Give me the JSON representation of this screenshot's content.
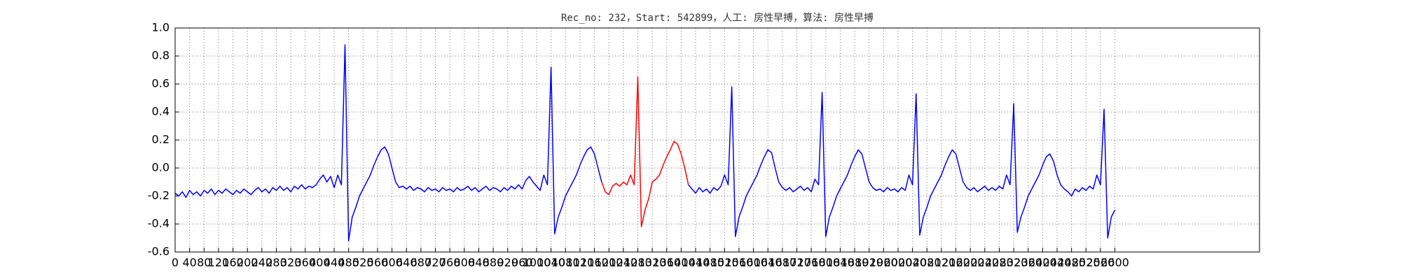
{
  "chart_data": {
    "type": "line",
    "title": "Rec_no: 232，Start: 542899，人工: 房性早搏，算法: 房性早搏",
    "xlim": [
      0,
      3000
    ],
    "ylim": [
      -0.6,
      1.0
    ],
    "grid": true,
    "xticks": [
      0,
      40,
      80,
      120,
      160,
      200,
      240,
      280,
      320,
      360,
      400,
      440,
      480,
      520,
      560,
      600,
      640,
      680,
      720,
      760,
      800,
      840,
      880,
      920,
      960,
      1000,
      1040,
      1080,
      1120,
      1160,
      1200,
      1240,
      1280,
      1320,
      1360,
      1400,
      1440,
      1480,
      1520,
      1560,
      1600,
      1640,
      1680,
      1720,
      1760,
      1800,
      1840,
      1880,
      1920,
      1960,
      2000,
      2040,
      2080,
      2120,
      2160,
      2200,
      2240,
      2280,
      2320,
      2360,
      2400,
      2440,
      2480,
      2520,
      2560,
      2600
    ],
    "yticks": [
      -0.6,
      -0.4,
      -0.2,
      {
        "value": 0.0,
        "label": "0.0"
      },
      0.2,
      0.4,
      0.6,
      0.8,
      {
        "value": 1.0,
        "label": "1.0"
      }
    ],
    "x": [
      0,
      10,
      20,
      30,
      40,
      50,
      60,
      70,
      80,
      90,
      100,
      110,
      120,
      130,
      140,
      150,
      160,
      170,
      180,
      190,
      200,
      210,
      220,
      230,
      240,
      250,
      260,
      270,
      280,
      290,
      300,
      310,
      320,
      330,
      340,
      350,
      360,
      370,
      380,
      390,
      400,
      410,
      420,
      430,
      440,
      450,
      460,
      470,
      480,
      490,
      500,
      510,
      520,
      530,
      540,
      550,
      560,
      570,
      580,
      590,
      600,
      610,
      620,
      630,
      640,
      650,
      660,
      670,
      680,
      690,
      700,
      710,
      720,
      730,
      740,
      750,
      760,
      770,
      780,
      790,
      800,
      810,
      820,
      830,
      840,
      850,
      860,
      870,
      880,
      890,
      900,
      910,
      920,
      930,
      940,
      950,
      960,
      970,
      980,
      990,
      1000,
      1010,
      1020,
      1030,
      1040,
      1050,
      1060,
      1070,
      1080,
      1090,
      1100,
      1110,
      1120,
      1130,
      1140,
      1150,
      1160,
      1170,
      1180,
      1190,
      1200,
      1210,
      1220,
      1230,
      1240,
      1250,
      1260,
      1270,
      1280,
      1290,
      1300,
      1310,
      1320,
      1330,
      1340,
      1350,
      1360,
      1370,
      1380,
      1390,
      1400,
      1410,
      1420,
      1430,
      1440,
      1450,
      1460,
      1470,
      1480,
      1490,
      1500,
      1510,
      1520,
      1530,
      1540,
      1550,
      1560,
      1570,
      1580,
      1590,
      1600,
      1610,
      1620,
      1630,
      1640,
      1650,
      1660,
      1670,
      1680,
      1690,
      1700,
      1710,
      1720,
      1730,
      1740,
      1750,
      1760,
      1770,
      1780,
      1790,
      1800,
      1810,
      1820,
      1830,
      1840,
      1850,
      1860,
      1870,
      1880,
      1890,
      1900,
      1910,
      1920,
      1930,
      1940,
      1950,
      1960,
      1970,
      1980,
      1990,
      2000,
      2010,
      2020,
      2030,
      2040,
      2050,
      2060,
      2070,
      2080,
      2090,
      2100,
      2110,
      2120,
      2130,
      2140,
      2150,
      2160,
      2170,
      2180,
      2190,
      2200,
      2210,
      2220,
      2230,
      2240,
      2250,
      2260,
      2270,
      2280,
      2290,
      2300,
      2310,
      2320,
      2330,
      2340,
      2350,
      2360,
      2370,
      2380,
      2390,
      2400,
      2410,
      2420,
      2430,
      2440,
      2450,
      2460,
      2470,
      2480,
      2490,
      2500,
      2510,
      2520,
      2530,
      2540,
      2550,
      2560,
      2570,
      2580,
      2590,
      2600
    ],
    "series": [
      {
        "color": "#0000ff",
        "values": [
          -0.18,
          -0.2,
          -0.17,
          -0.21,
          -0.16,
          -0.19,
          -0.17,
          -0.2,
          -0.16,
          -0.18,
          -0.15,
          -0.19,
          -0.16,
          -0.18,
          -0.15,
          -0.17,
          -0.19,
          -0.16,
          -0.18,
          -0.15,
          -0.17,
          -0.19,
          -0.16,
          -0.14,
          -0.17,
          -0.15,
          -0.18,
          -0.14,
          -0.16,
          -0.13,
          -0.16,
          -0.14,
          -0.17,
          -0.13,
          -0.15,
          -0.12,
          -0.15,
          -0.13,
          -0.14,
          -0.12,
          -0.08,
          -0.05,
          -0.1,
          -0.06,
          -0.14,
          -0.05,
          -0.12,
          0.88,
          -0.52,
          -0.35,
          -0.28,
          -0.2,
          -0.15,
          -0.1,
          -0.05,
          0.02,
          0.08,
          0.13,
          0.15,
          0.1,
          0.0,
          -0.1,
          -0.14,
          -0.13,
          -0.15,
          -0.13,
          -0.16,
          -0.14,
          -0.15,
          -0.17,
          -0.14,
          -0.16,
          -0.15,
          -0.17,
          -0.14,
          -0.16,
          -0.15,
          -0.17,
          -0.14,
          -0.16,
          -0.15,
          -0.13,
          -0.16,
          -0.14,
          -0.17,
          -0.15,
          -0.13,
          -0.16,
          -0.14,
          -0.15,
          -0.17,
          -0.14,
          -0.16,
          -0.13,
          -0.15,
          -0.12,
          -0.15,
          -0.09,
          -0.06,
          -0.1,
          -0.13,
          -0.16,
          -0.05,
          -0.12,
          0.72,
          -0.47,
          -0.35,
          -0.28,
          -0.2,
          -0.15,
          -0.1,
          -0.05,
          0.02,
          0.08,
          0.13,
          0.15,
          0.1,
          0.0,
          -0.1,
          null,
          null,
          null,
          null,
          null,
          null,
          null,
          null,
          null,
          null,
          null,
          null,
          null,
          null,
          null,
          null,
          null,
          null,
          null,
          null,
          null,
          null,
          null,
          -0.12,
          -0.15,
          -0.18,
          -0.14,
          -0.17,
          -0.15,
          -0.18,
          -0.14,
          -0.16,
          -0.13,
          -0.05,
          -0.12,
          0.58,
          -0.49,
          -0.35,
          -0.28,
          -0.2,
          -0.15,
          -0.1,
          -0.05,
          0.02,
          0.08,
          0.13,
          0.11,
          0.0,
          -0.1,
          -0.14,
          -0.16,
          -0.14,
          -0.17,
          -0.15,
          -0.13,
          -0.16,
          -0.14,
          -0.17,
          -0.08,
          -0.12,
          0.54,
          -0.49,
          -0.35,
          -0.28,
          -0.2,
          -0.15,
          -0.1,
          -0.05,
          0.02,
          0.08,
          0.13,
          0.1,
          0.0,
          -0.1,
          -0.14,
          -0.16,
          -0.15,
          -0.17,
          -0.14,
          -0.16,
          -0.15,
          -0.17,
          -0.14,
          -0.16,
          -0.05,
          -0.12,
          0.53,
          -0.48,
          -0.35,
          -0.28,
          -0.2,
          -0.15,
          -0.1,
          -0.05,
          0.02,
          0.08,
          0.13,
          0.1,
          0.0,
          -0.1,
          -0.14,
          -0.16,
          -0.14,
          -0.17,
          -0.15,
          -0.13,
          -0.16,
          -0.14,
          -0.16,
          -0.13,
          -0.15,
          -0.05,
          -0.12,
          0.46,
          -0.46,
          -0.35,
          -0.28,
          -0.2,
          -0.15,
          -0.1,
          -0.05,
          0.02,
          0.08,
          0.1,
          0.05,
          -0.05,
          -0.12,
          -0.15,
          -0.17,
          -0.2,
          -0.15,
          -0.17,
          -0.14,
          -0.16,
          -0.13,
          -0.15,
          -0.05,
          -0.12,
          0.42,
          -0.5,
          -0.35,
          -0.3
        ]
      },
      {
        "color": "#ff0000",
        "x": [
          1180,
          1190,
          1200,
          1210,
          1220,
          1230,
          1240,
          1250,
          1260,
          1270,
          1280,
          1290,
          1300,
          1310,
          1320,
          1330,
          1340,
          1350,
          1360,
          1370,
          1380,
          1390,
          1400,
          1410,
          1420
        ],
        "values": [
          -0.1,
          -0.17,
          -0.19,
          -0.13,
          -0.11,
          -0.13,
          -0.1,
          -0.12,
          -0.05,
          -0.12,
          0.65,
          -0.42,
          -0.3,
          -0.22,
          -0.1,
          -0.08,
          -0.05,
          0.02,
          0.08,
          0.13,
          0.19,
          0.17,
          0.1,
          0.0,
          -0.12
        ]
      }
    ]
  }
}
